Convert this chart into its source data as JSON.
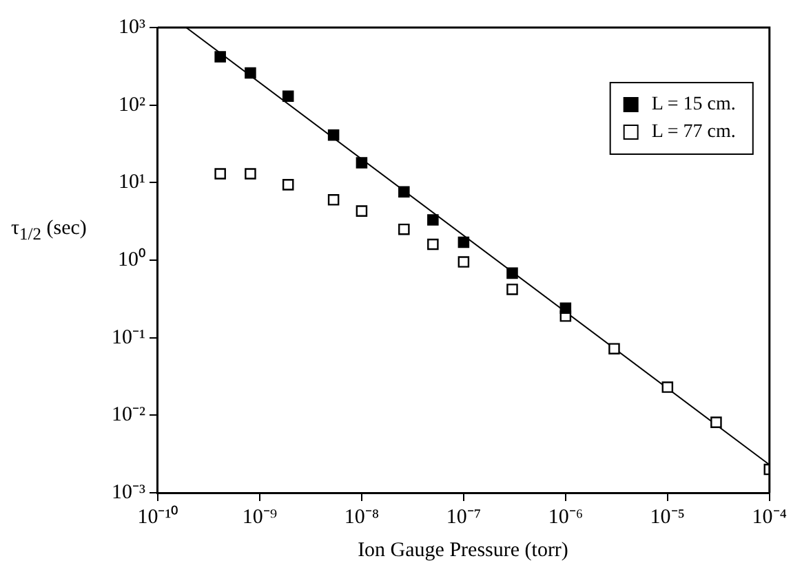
{
  "chart_data": {
    "type": "scatter",
    "xlabel": "Ion Gauge Pressure (torr)",
    "ylabel": "τ$_{1/2}$ (sec)",
    "log": "xy",
    "grid": false,
    "legend": "top right",
    "marker": "square",
    "xlim": [
      1e-10,
      0.0001
    ],
    "xticks": [
      {
        "value": 1e-10,
        "label": "10⁻¹⁰"
      },
      {
        "value": 1e-09,
        "label": "10⁻⁹"
      },
      {
        "value": 1e-08,
        "label": "10⁻⁸"
      },
      {
        "value": 1e-07,
        "label": "10⁻⁷"
      },
      {
        "value": 1e-06,
        "label": "10⁻⁶"
      },
      {
        "value": 1e-05,
        "label": "10⁻⁵"
      },
      {
        "value": 0.0001,
        "label": "10⁻⁴"
      }
    ],
    "ylim": [
      0.001,
      1000.0
    ],
    "yticks": [
      {
        "value": 0.001,
        "label": "10⁻³"
      },
      {
        "value": 0.01,
        "label": "10⁻²"
      },
      {
        "value": 0.1,
        "label": "10⁻¹"
      },
      {
        "value": 1,
        "label": "10⁰"
      },
      {
        "value": 10,
        "label": "10¹"
      },
      {
        "value": 100,
        "label": "10²"
      },
      {
        "value": 1000,
        "label": "10³"
      }
    ],
    "series": [
      {
        "name": "L = 15 cm.",
        "color": "#000000",
        "x": [
          4.1e-10,
          8.1e-10,
          1.9e-09,
          5.3e-09,
          1e-08,
          2.6e-08,
          5e-08,
          1e-07,
          3e-07,
          1e-06
        ],
        "values": [
          420,
          260,
          130,
          41,
          18,
          7.6,
          3.3,
          1.7,
          0.68,
          0.24
        ]
      },
      {
        "name": "L = 77 cm.",
        "color": "#ffffff",
        "x": [
          4.1e-10,
          8.1e-10,
          1.9e-09,
          5.3e-09,
          1e-08,
          2.6e-08,
          5e-08,
          1e-07,
          3e-07,
          1e-06,
          3e-06,
          1e-05,
          3e-05,
          0.0001
        ],
        "values": [
          13,
          13,
          9.4,
          6,
          4.3,
          2.5,
          1.6,
          0.95,
          0.42,
          0.19,
          0.072,
          0.023,
          0.0081,
          0.002
        ]
      },
      {
        "type": "line",
        "color": "#000000",
        "marker": "none",
        "x": [
          1.9e-10,
          0.0001
        ],
        "values": [
          1000,
          0.0023
        ]
      }
    ]
  }
}
